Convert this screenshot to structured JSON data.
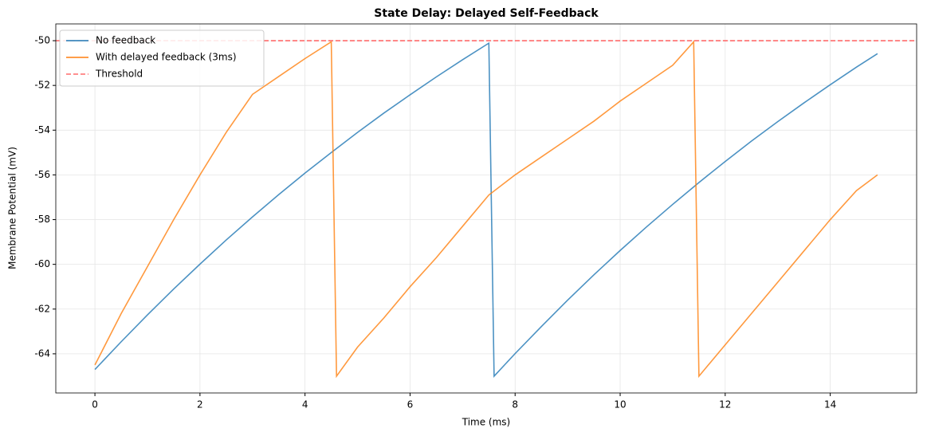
{
  "chart_data": {
    "type": "line",
    "title": "State Delay: Delayed Self-Feedback",
    "x_label": "Time (ms)",
    "y_label": "Membrane Potential (mV)",
    "xlim": [
      -0.745,
      15.645
    ],
    "ylim": [
      -65.75,
      -49.25
    ],
    "xticks": [
      0,
      2,
      4,
      6,
      8,
      10,
      12,
      14
    ],
    "yticks": [
      -64,
      -62,
      -60,
      -58,
      -56,
      -54,
      -52,
      -50
    ],
    "grid": true,
    "legend_position": "upper-left",
    "series": [
      {
        "name": "No feedback",
        "color": "#1f77b4",
        "x": [
          0,
          0.5,
          1,
          1.5,
          2,
          2.5,
          3,
          3.5,
          4,
          4.5,
          5,
          5.5,
          6,
          6.5,
          7,
          7.5,
          7.6,
          8,
          8.5,
          9,
          9.5,
          10,
          10.5,
          11,
          11.5,
          12,
          12.5,
          13,
          13.5,
          14,
          14.5,
          14.9
        ],
        "values": [
          -64.7,
          -63.46,
          -62.26,
          -61.1,
          -59.99,
          -58.91,
          -57.88,
          -56.88,
          -55.92,
          -55.0,
          -54.1,
          -53.24,
          -52.42,
          -51.62,
          -50.85,
          -50.11,
          -65.0,
          -63.99,
          -62.78,
          -61.6,
          -60.47,
          -59.38,
          -58.33,
          -57.32,
          -56.34,
          -55.4,
          -54.49,
          -53.62,
          -52.78,
          -51.97,
          -51.18,
          -50.58
        ]
      },
      {
        "name": "With delayed feedback (3ms)",
        "color": "#ff7f0e",
        "x": [
          0,
          0.5,
          1,
          1.5,
          2,
          2.5,
          3,
          3.5,
          4,
          4.5,
          4.6,
          5,
          5.5,
          6,
          6.5,
          7,
          7.5,
          8,
          8.5,
          9,
          9.5,
          10,
          10.5,
          11,
          11.4,
          11.5,
          12,
          12.5,
          13,
          13.5,
          14,
          14.5,
          14.9
        ],
        "values": [
          -64.5,
          -62.2,
          -60.1,
          -58.0,
          -56.0,
          -54.1,
          -52.4,
          -51.6,
          -50.8,
          -50.05,
          -65.0,
          -63.7,
          -62.4,
          -61.0,
          -59.7,
          -58.3,
          -56.9,
          -56.0,
          -55.2,
          -54.4,
          -53.6,
          -52.7,
          -51.9,
          -51.1,
          -50.05,
          -65.0,
          -63.6,
          -62.2,
          -60.8,
          -59.4,
          -58.0,
          -56.7,
          -56.0
        ]
      }
    ],
    "threshold": {
      "name": "Threshold",
      "value": -50,
      "color": "#ff6b6b"
    }
  }
}
